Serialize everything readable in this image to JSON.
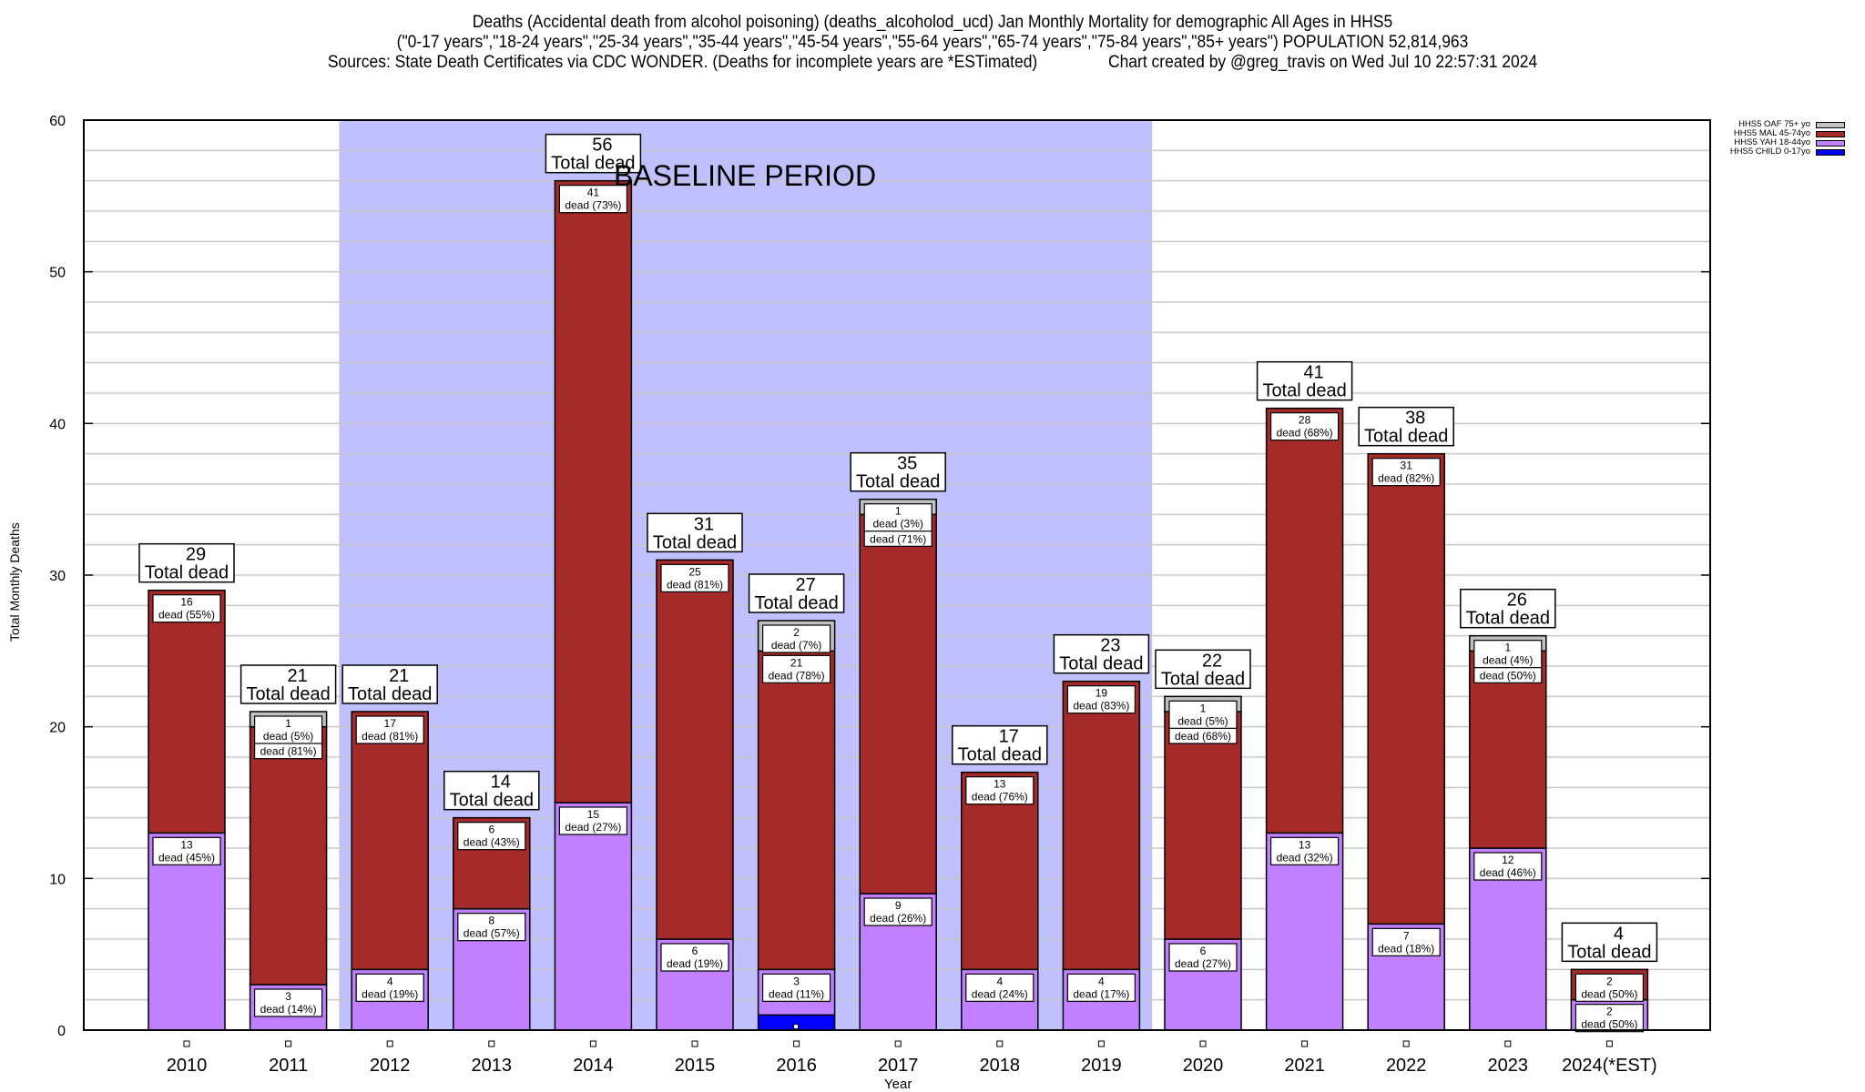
{
  "title": {
    "line1": "Deaths (Accidental death from alcohol poisoning) (deaths_alcoholod_ucd) Jan Monthly Mortality for demographic All Ages in HHS5",
    "line2": "(\"0-17 years\",\"18-24 years\",\"25-34 years\",\"35-44 years\",\"45-54 years\",\"55-64 years\",\"65-74 years\",\"75-84 years\",\"85+ years\") POPULATION 52,814,963",
    "line3": "Sources: State Death Certificates via CDC WONDER. (Deaths for incomplete years are *ESTimated)                Chart created by @greg_travis on Wed Jul 10 22:57:31 2024"
  },
  "chart_data": {
    "type": "bar",
    "stacked": true,
    "title": "Deaths (Accidental death from alcohol poisoning) (deaths_alcoholod_ucd) Jan Monthly Mortality for demographic All Ages in HHS5",
    "xlabel": "Year",
    "ylabel": "Total Monthly Deaths",
    "ylim": [
      0,
      60
    ],
    "yticks": [
      0,
      10,
      20,
      30,
      40,
      50,
      60
    ],
    "minor_grid_step": 2,
    "grid": true,
    "legend_position": "top-right",
    "categories": [
      "2010",
      "2011",
      "2012",
      "2013",
      "2014",
      "2015",
      "2016",
      "2017",
      "2018",
      "2019",
      "2020",
      "2021",
      "2022",
      "2023",
      "2024(*EST)"
    ],
    "series": [
      {
        "name": "HHS5 CHILD 0-17yo",
        "color": "#0000ff",
        "values": [
          0,
          0,
          0,
          0,
          0,
          0,
          1,
          0,
          0,
          0,
          0,
          0,
          0,
          0,
          0
        ]
      },
      {
        "name": "HHS5 YAH 18-44yo",
        "color": "#c080ff",
        "values": [
          13,
          3,
          4,
          8,
          15,
          6,
          3,
          9,
          4,
          4,
          6,
          13,
          7,
          12,
          2
        ]
      },
      {
        "name": "HHS5 MAL 45-74yo",
        "color": "#a52a2a",
        "values": [
          16,
          17,
          17,
          6,
          41,
          25,
          21,
          25,
          13,
          19,
          15,
          28,
          31,
          13,
          2
        ]
      },
      {
        "name": "HHS5 OAF 75+ yo",
        "color": "#c0c0c0",
        "values": [
          0,
          1,
          0,
          0,
          0,
          0,
          2,
          1,
          0,
          0,
          1,
          0,
          0,
          1,
          0
        ]
      }
    ],
    "segment_labels": [
      [
        null,
        {
          "v": "13",
          "p": "45%"
        },
        {
          "v": "16",
          "p": "55%"
        },
        null
      ],
      [
        null,
        {
          "v": "3",
          "p": "14%"
        },
        {
          "v": "17",
          "p": "81%"
        },
        {
          "v": "1",
          "p": "5%"
        }
      ],
      [
        null,
        {
          "v": "4",
          "p": "19%"
        },
        {
          "v": "17",
          "p": "81%"
        },
        null
      ],
      [
        null,
        {
          "v": "8",
          "p": "57%"
        },
        {
          "v": "6",
          "p": "43%"
        },
        null
      ],
      [
        null,
        {
          "v": "15",
          "p": "27%"
        },
        {
          "v": "41",
          "p": "73%"
        },
        null
      ],
      [
        null,
        {
          "v": "6",
          "p": "19%"
        },
        {
          "v": "25",
          "p": "81%"
        },
        null
      ],
      [
        null,
        {
          "v": "3",
          "p": "11%"
        },
        {
          "v": "21",
          "p": "78%"
        },
        {
          "v": "2",
          "p": "7%"
        }
      ],
      [
        null,
        {
          "v": "9",
          "p": "26%"
        },
        {
          "v": "25",
          "p": "71%"
        },
        {
          "v": "1",
          "p": "3%"
        }
      ],
      [
        null,
        {
          "v": "4",
          "p": "24%"
        },
        {
          "v": "13",
          "p": "76%"
        },
        null
      ],
      [
        null,
        {
          "v": "4",
          "p": "17%"
        },
        {
          "v": "19",
          "p": "83%"
        },
        null
      ],
      [
        null,
        {
          "v": "6",
          "p": "27%"
        },
        {
          "v": "15",
          "p": "68%"
        },
        {
          "v": "1",
          "p": "5%"
        }
      ],
      [
        null,
        {
          "v": "13",
          "p": "32%"
        },
        {
          "v": "28",
          "p": "68%"
        },
        null
      ],
      [
        null,
        {
          "v": "7",
          "p": "18%"
        },
        {
          "v": "31",
          "p": "82%"
        },
        null
      ],
      [
        null,
        {
          "v": "12",
          "p": "46%"
        },
        {
          "v": "13",
          "p": "50%"
        },
        {
          "v": "1",
          "p": "4%"
        }
      ],
      [
        null,
        {
          "v": "2",
          "p": "50%"
        },
        {
          "v": "2",
          "p": "50%"
        },
        null
      ]
    ],
    "totals": [
      29,
      21,
      21,
      14,
      56,
      31,
      27,
      35,
      17,
      23,
      22,
      41,
      38,
      26,
      4
    ],
    "total_label_suffix": "Total dead",
    "segment_label_word": "dead",
    "annotation": {
      "text": "BASELINE PERIOD",
      "start_category": "2012",
      "end_category": "2019",
      "color": "#c0c0ff"
    }
  },
  "legend": {
    "items": [
      {
        "label": "HHS5 OAF 75+ yo",
        "color": "#c0c0c0"
      },
      {
        "label": "HHS5 MAL 45-74yo",
        "color": "#a52a2a"
      },
      {
        "label": "HHS5 YAH 18-44yo",
        "color": "#c080ff"
      },
      {
        "label": "HHS5 CHILD 0-17yo",
        "color": "#0000ff"
      }
    ]
  },
  "axes": {
    "ylabel": "Total Monthly Deaths",
    "xlabel": "Year"
  }
}
